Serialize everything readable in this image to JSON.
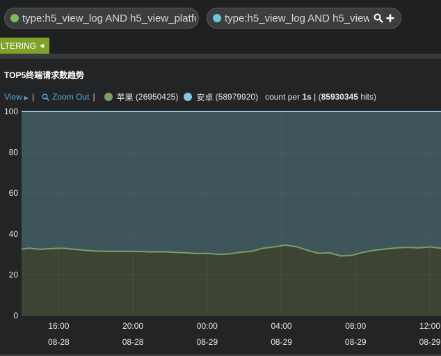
{
  "query_bar": {
    "queries": [
      {
        "text": "type:h5_view_log AND h5_view_platfo",
        "color": "#7bbd5e"
      },
      {
        "text": "type:h5_view_log AND h5_view_p",
        "color": "#6fc6d8"
      }
    ],
    "icons": [
      "search-icon",
      "plus-icon"
    ]
  },
  "filter_tab": {
    "label": "LTERING"
  },
  "panel": {
    "title": "TOP5终端请求数趋势",
    "view_label": "View",
    "zoom_out_label": "Zoom Out",
    "count_per_label": "count per",
    "interval": "1s",
    "total_hits": "85930345",
    "hits_label": "hits"
  },
  "chart_data": {
    "type": "area",
    "stacked": true,
    "series": [
      {
        "name": "苹果",
        "count": "26950425",
        "color": "#7e9e66",
        "fill": "#3c4433"
      },
      {
        "name": "安卓",
        "count": "58979920",
        "color": "#86c6dc",
        "fill": "#3e555c"
      }
    ],
    "y_ticks": [
      "0",
      "20",
      "40",
      "60",
      "80",
      "100"
    ],
    "ylim": [
      0,
      100
    ],
    "x_ticks": [
      {
        "time": "16:00",
        "date": "08-28"
      },
      {
        "time": "20:00",
        "date": "08-28"
      },
      {
        "time": "00:00",
        "date": "08-29"
      },
      {
        "time": "04:00",
        "date": "08-29"
      },
      {
        "time": "08:00",
        "date": "08-29"
      },
      {
        "time": "12:00",
        "date": "08-29"
      }
    ],
    "x_tick_hours": [
      2,
      6,
      10,
      14,
      18,
      22
    ],
    "x_range_hours": [
      0,
      22.6
    ],
    "apple_x_hours": [
      0,
      0.4,
      1.0,
      1.6,
      2.2,
      2.8,
      3.4,
      4.0,
      4.6,
      5.2,
      5.8,
      6.4,
      7.0,
      7.6,
      8.2,
      8.8,
      9.4,
      10.0,
      10.6,
      11.2,
      11.8,
      12.4,
      13.0,
      13.6,
      14.2,
      14.8,
      15.4,
      16.0,
      16.6,
      17.2,
      17.8,
      18.4,
      19.0,
      19.6,
      20.2,
      20.8,
      21.4,
      22.0,
      22.6
    ],
    "apple_values": [
      32.5,
      33,
      32.5,
      32.8,
      33,
      32.5,
      32,
      31.6,
      31.5,
      31.5,
      31.5,
      31.4,
      31.2,
      31.3,
      31,
      30.8,
      30.4,
      30.5,
      30,
      30.2,
      31,
      31.5,
      33,
      33.6,
      34.5,
      33.8,
      32,
      30.5,
      30.8,
      29.2,
      29.5,
      31,
      32,
      32.6,
      33.2,
      33.4,
      33.2,
      33.6,
      33
    ],
    "android_values": [
      100,
      100,
      100,
      100,
      100,
      100,
      100,
      100,
      100,
      100,
      100,
      100,
      100,
      100,
      100,
      100,
      100,
      100,
      100,
      100,
      100,
      100,
      100,
      100,
      100,
      100,
      100,
      100,
      100,
      100,
      100,
      100,
      100,
      100,
      100,
      100,
      100,
      100,
      100
    ]
  }
}
